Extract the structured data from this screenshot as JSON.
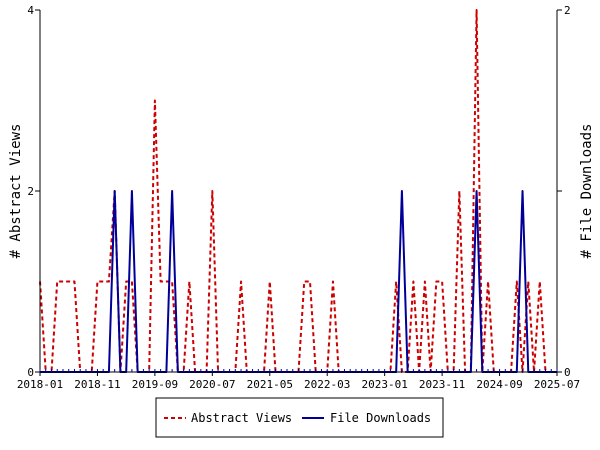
{
  "chart_data": {
    "type": "line",
    "title": "",
    "xlabel": "",
    "ylabel_left": "# Abstract Views",
    "ylabel_right": "# File Downloads",
    "x_range": [
      "2018-01",
      "2025-07"
    ],
    "x_ticks": [
      "2018-01",
      "2018-11",
      "2019-09",
      "2020-07",
      "2021-05",
      "2022-03",
      "2023-01",
      "2023-11",
      "2024-09",
      "2025-07"
    ],
    "y_left_range": [
      0,
      4
    ],
    "y_left_ticks": [
      "0",
      "2",
      "4"
    ],
    "y_right_range": [
      0,
      2
    ],
    "y_right_ticks": [
      "0",
      "1",
      "2"
    ],
    "legend_position": "bottom",
    "grid": false,
    "series": [
      {
        "name": "Abstract Views",
        "axis": "left",
        "color": "#cc0000",
        "style": "dashed",
        "points": [
          [
            "2018-01",
            1
          ],
          [
            "2018-02",
            0
          ],
          [
            "2018-03",
            0
          ],
          [
            "2018-04",
            1
          ],
          [
            "2018-05",
            1
          ],
          [
            "2018-06",
            1
          ],
          [
            "2018-07",
            1
          ],
          [
            "2018-08",
            0
          ],
          [
            "2018-09",
            0
          ],
          [
            "2018-10",
            0
          ],
          [
            "2018-11",
            1
          ],
          [
            "2018-12",
            1
          ],
          [
            "2019-01",
            1
          ],
          [
            "2019-02",
            2
          ],
          [
            "2019-03",
            0
          ],
          [
            "2019-04",
            1
          ],
          [
            "2019-05",
            1
          ],
          [
            "2019-06",
            0
          ],
          [
            "2019-07",
            0
          ],
          [
            "2019-08",
            0
          ],
          [
            "2019-09",
            3
          ],
          [
            "2019-10",
            1
          ],
          [
            "2019-11",
            1
          ],
          [
            "2019-12",
            1
          ],
          [
            "2020-01",
            0
          ],
          [
            "2020-02",
            0
          ],
          [
            "2020-03",
            1
          ],
          [
            "2020-04",
            0
          ],
          [
            "2020-05",
            0
          ],
          [
            "2020-06",
            0
          ],
          [
            "2020-07",
            2
          ],
          [
            "2020-08",
            0
          ],
          [
            "2020-09",
            0
          ],
          [
            "2020-10",
            0
          ],
          [
            "2020-11",
            0
          ],
          [
            "2020-12",
            1
          ],
          [
            "2021-01",
            0
          ],
          [
            "2021-02",
            0
          ],
          [
            "2021-03",
            0
          ],
          [
            "2021-04",
            0
          ],
          [
            "2021-05",
            1
          ],
          [
            "2021-06",
            0
          ],
          [
            "2021-07",
            0
          ],
          [
            "2021-08",
            0
          ],
          [
            "2021-09",
            0
          ],
          [
            "2021-10",
            0
          ],
          [
            "2021-11",
            1
          ],
          [
            "2021-12",
            1
          ],
          [
            "2022-01",
            0
          ],
          [
            "2022-02",
            0
          ],
          [
            "2022-03",
            0
          ],
          [
            "2022-04",
            1
          ],
          [
            "2022-05",
            0
          ],
          [
            "2022-06",
            0
          ],
          [
            "2022-07",
            0
          ],
          [
            "2022-08",
            0
          ],
          [
            "2022-09",
            0
          ],
          [
            "2022-10",
            0
          ],
          [
            "2022-11",
            0
          ],
          [
            "2022-12",
            0
          ],
          [
            "2023-01",
            0
          ],
          [
            "2023-02",
            0
          ],
          [
            "2023-03",
            1
          ],
          [
            "2023-04",
            0
          ],
          [
            "2023-05",
            0
          ],
          [
            "2023-06",
            1
          ],
          [
            "2023-07",
            0
          ],
          [
            "2023-08",
            1
          ],
          [
            "2023-09",
            0
          ],
          [
            "2023-10",
            1
          ],
          [
            "2023-11",
            1
          ],
          [
            "2023-12",
            0
          ],
          [
            "2024-01",
            0
          ],
          [
            "2024-02",
            2
          ],
          [
            "2024-03",
            0
          ],
          [
            "2024-04",
            0
          ],
          [
            "2024-05",
            4
          ],
          [
            "2024-06",
            0
          ],
          [
            "2024-07",
            1
          ],
          [
            "2024-08",
            0
          ],
          [
            "2024-09",
            0
          ],
          [
            "2024-10",
            0
          ],
          [
            "2024-11",
            0
          ],
          [
            "2024-12",
            1
          ],
          [
            "2025-01",
            0
          ],
          [
            "2025-02",
            1
          ],
          [
            "2025-03",
            0
          ],
          [
            "2025-04",
            1
          ],
          [
            "2025-05",
            0
          ],
          [
            "2025-06",
            0
          ],
          [
            "2025-07",
            0
          ]
        ]
      },
      {
        "name": "File Downloads",
        "axis": "right",
        "color": "#000099",
        "style": "solid",
        "points": [
          [
            "2018-01",
            0
          ],
          [
            "2018-02",
            0
          ],
          [
            "2018-03",
            0
          ],
          [
            "2018-04",
            0
          ],
          [
            "2018-05",
            0
          ],
          [
            "2018-06",
            0
          ],
          [
            "2018-07",
            0
          ],
          [
            "2018-08",
            0
          ],
          [
            "2018-09",
            0
          ],
          [
            "2018-10",
            0
          ],
          [
            "2018-11",
            0
          ],
          [
            "2018-12",
            0
          ],
          [
            "2019-01",
            0
          ],
          [
            "2019-02",
            1
          ],
          [
            "2019-03",
            0
          ],
          [
            "2019-04",
            0
          ],
          [
            "2019-05",
            1
          ],
          [
            "2019-06",
            0
          ],
          [
            "2019-07",
            0
          ],
          [
            "2019-08",
            0
          ],
          [
            "2019-09",
            0
          ],
          [
            "2019-10",
            0
          ],
          [
            "2019-11",
            0
          ],
          [
            "2019-12",
            1
          ],
          [
            "2020-01",
            0
          ],
          [
            "2020-02",
            0
          ],
          [
            "2020-03",
            0
          ],
          [
            "2020-04",
            0
          ],
          [
            "2020-05",
            0
          ],
          [
            "2020-06",
            0
          ],
          [
            "2020-07",
            0
          ],
          [
            "2020-08",
            0
          ],
          [
            "2020-09",
            0
          ],
          [
            "2020-10",
            0
          ],
          [
            "2020-11",
            0
          ],
          [
            "2020-12",
            0
          ],
          [
            "2021-01",
            0
          ],
          [
            "2021-02",
            0
          ],
          [
            "2021-03",
            0
          ],
          [
            "2021-04",
            0
          ],
          [
            "2021-05",
            0
          ],
          [
            "2021-06",
            0
          ],
          [
            "2021-07",
            0
          ],
          [
            "2021-08",
            0
          ],
          [
            "2021-09",
            0
          ],
          [
            "2021-10",
            0
          ],
          [
            "2021-11",
            0
          ],
          [
            "2021-12",
            0
          ],
          [
            "2022-01",
            0
          ],
          [
            "2022-02",
            0
          ],
          [
            "2022-03",
            0
          ],
          [
            "2022-04",
            0
          ],
          [
            "2022-05",
            0
          ],
          [
            "2022-06",
            0
          ],
          [
            "2022-07",
            0
          ],
          [
            "2022-08",
            0
          ],
          [
            "2022-09",
            0
          ],
          [
            "2022-10",
            0
          ],
          [
            "2022-11",
            0
          ],
          [
            "2022-12",
            0
          ],
          [
            "2023-01",
            0
          ],
          [
            "2023-02",
            0
          ],
          [
            "2023-03",
            0
          ],
          [
            "2023-04",
            1
          ],
          [
            "2023-05",
            0
          ],
          [
            "2023-06",
            0
          ],
          [
            "2023-07",
            0
          ],
          [
            "2023-08",
            0
          ],
          [
            "2023-09",
            0
          ],
          [
            "2023-10",
            0
          ],
          [
            "2023-11",
            0
          ],
          [
            "2023-12",
            0
          ],
          [
            "2024-01",
            0
          ],
          [
            "2024-02",
            0
          ],
          [
            "2024-03",
            0
          ],
          [
            "2024-04",
            0
          ],
          [
            "2024-05",
            1
          ],
          [
            "2024-06",
            0
          ],
          [
            "2024-07",
            0
          ],
          [
            "2024-08",
            0
          ],
          [
            "2024-09",
            0
          ],
          [
            "2024-10",
            0
          ],
          [
            "2024-11",
            0
          ],
          [
            "2024-12",
            0
          ],
          [
            "2025-01",
            1
          ],
          [
            "2025-02",
            0
          ],
          [
            "2025-03",
            0
          ],
          [
            "2025-04",
            0
          ],
          [
            "2025-05",
            0
          ],
          [
            "2025-06",
            0
          ],
          [
            "2025-07",
            0
          ]
        ]
      }
    ]
  }
}
